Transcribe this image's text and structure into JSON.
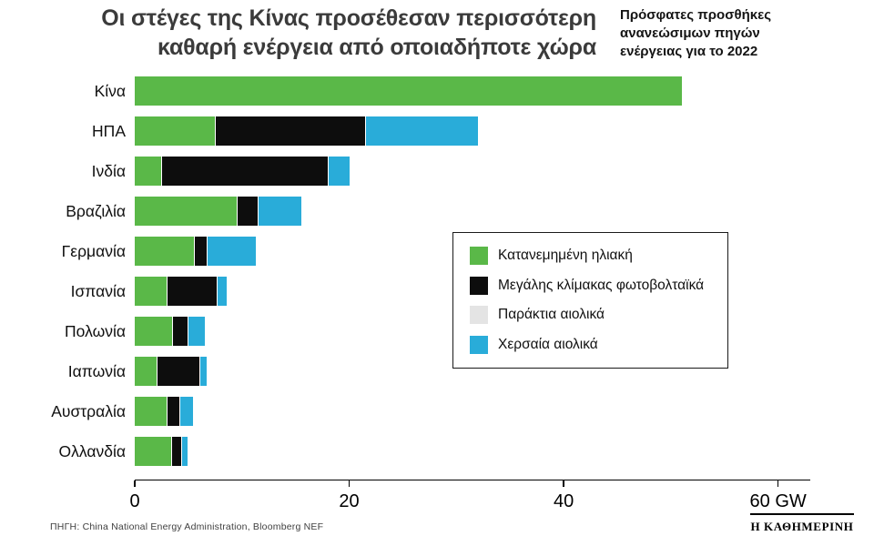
{
  "header": {
    "title_line1": "Οι στέγες της Κίνας προσέθεσαν περισσότερη",
    "title_line2": "καθαρή ενέργεια από οποιαδήποτε χώρα",
    "subtitle_line1": "Πρόσφατες προσθήκες",
    "subtitle_line2": "ανανεώσιμων πηγών",
    "subtitle_line3": "ενέργειας για το 2022"
  },
  "chart_data": {
    "type": "bar",
    "orientation": "horizontal",
    "stacked": true,
    "unit": "GW",
    "xlim": [
      0,
      63
    ],
    "xticks": [
      0,
      20,
      40,
      60
    ],
    "xtick_labels": [
      "0",
      "20",
      "40",
      "60 GW"
    ],
    "grid": false,
    "legend_position": "center-right",
    "categories": [
      "Κίνα",
      "ΗΠΑ",
      "Ινδία",
      "Βραζιλία",
      "Γερμανία",
      "Ισπανία",
      "Πολωνία",
      "Ιαπωνία",
      "Αυστραλία",
      "Ολλανδία"
    ],
    "series": [
      {
        "key": "distributed-solar",
        "name": "Κατανεμημένη ηλιακή",
        "color": "#5ab848",
        "values": [
          51,
          7.5,
          2.5,
          9.5,
          5.5,
          3.0,
          3.5,
          2.0,
          3.0,
          3.4
        ]
      },
      {
        "key": "utility-scale-pv",
        "name": "Μεγάλης κλίμακας φωτοβολταϊκά",
        "color": "#0d0d0d",
        "values": [
          0,
          14.0,
          15.5,
          2.0,
          1.2,
          4.6,
          1.4,
          4.0,
          1.2,
          0.9
        ]
      },
      {
        "key": "offshore-wind",
        "name": "Παράκτια αιολικά",
        "color": "#e4e4e4",
        "values": [
          0,
          0,
          0,
          0,
          0,
          0,
          0,
          0,
          0,
          0
        ]
      },
      {
        "key": "onshore-wind",
        "name": "Χερσαία αιολικά",
        "color": "#29acd9",
        "values": [
          0,
          10.5,
          2.0,
          4.0,
          4.6,
          1.0,
          1.6,
          0.7,
          1.2,
          0.6
        ]
      }
    ]
  },
  "footer": {
    "source": "ΠΗΓΗ: China National Energy Administration, Bloomberg NEF",
    "brand": "Η ΚΑΘΗΜΕΡΙΝΗ"
  }
}
